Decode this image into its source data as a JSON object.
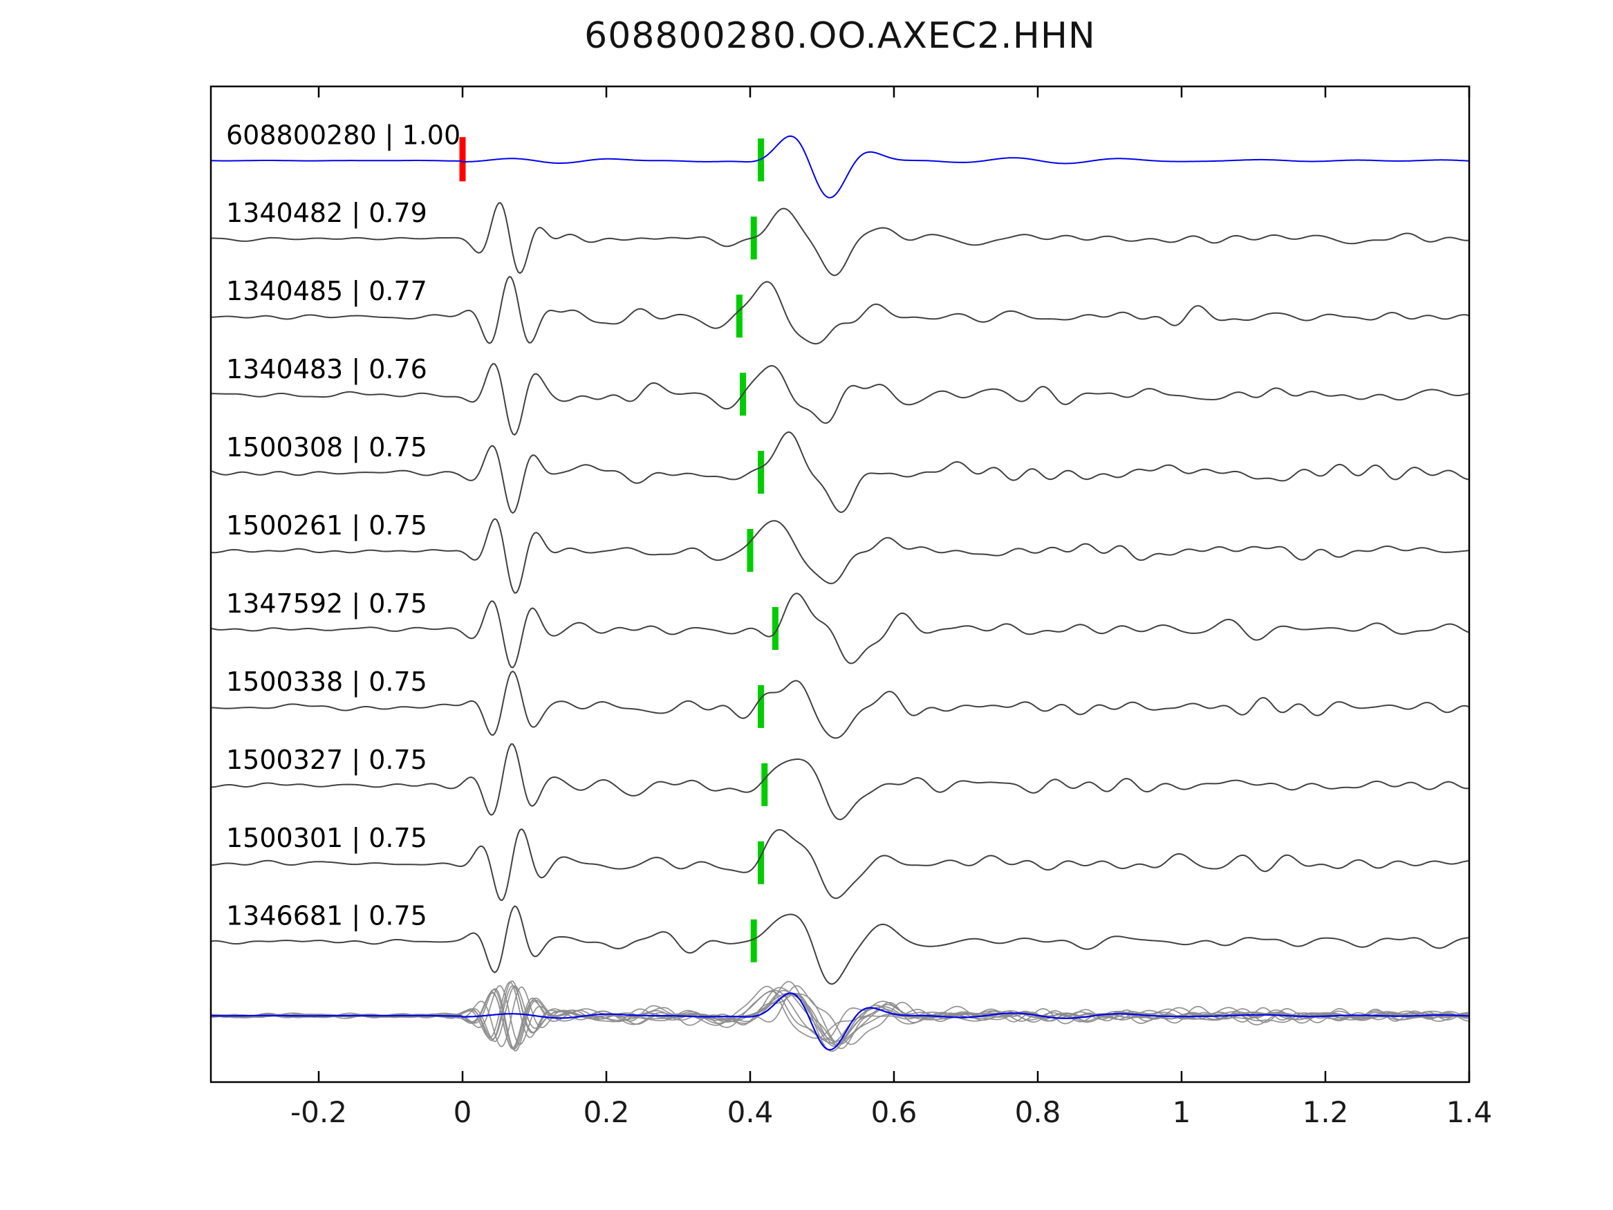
{
  "chart_data": {
    "type": "line",
    "title": "608800280.OO.AXEC2.HHN",
    "xlabel": "",
    "ylabel": "",
    "xlim": [
      -0.35,
      1.4
    ],
    "x_ticks": [
      -0.2,
      0,
      0.2,
      0.4,
      0.6,
      0.8,
      1,
      1.2,
      1.4
    ],
    "x_tick_labels": [
      "-0.2",
      "0",
      "0.2",
      "0.4",
      "0.6",
      "0.8",
      "1",
      "1.2",
      "1.4"
    ],
    "grid": false,
    "legend": "none",
    "colors": {
      "template_trace": "#0000ee",
      "match_trace": "#404040",
      "overlay_trace": "#8c8c8c",
      "pick_marker": "#00cc00",
      "origin_marker": "#ff0000",
      "axis": "#000000",
      "text": "#1a1a1a"
    },
    "traces": [
      {
        "id": "608800280",
        "correlation": "1.00",
        "label": "608800280 | 1.00",
        "pick_time": 0.415,
        "origin_time": 0.0,
        "role": "template"
      },
      {
        "id": "1340482",
        "correlation": "0.79",
        "label": "1340482 | 0.79",
        "pick_time": 0.405,
        "role": "match"
      },
      {
        "id": "1340485",
        "correlation": "0.77",
        "label": "1340485 | 0.77",
        "pick_time": 0.385,
        "role": "match"
      },
      {
        "id": "1340483",
        "correlation": "0.76",
        "label": "1340483 | 0.76",
        "pick_time": 0.39,
        "role": "match"
      },
      {
        "id": "1500308",
        "correlation": "0.75",
        "label": "1500308 | 0.75",
        "pick_time": 0.415,
        "role": "match"
      },
      {
        "id": "1500261",
        "correlation": "0.75",
        "label": "1500261 | 0.75",
        "pick_time": 0.4,
        "role": "match"
      },
      {
        "id": "1347592",
        "correlation": "0.75",
        "label": "1347592 | 0.75",
        "pick_time": 0.435,
        "role": "match"
      },
      {
        "id": "1500338",
        "correlation": "0.75",
        "label": "1500338 | 0.75",
        "pick_time": 0.415,
        "role": "match"
      },
      {
        "id": "1500327",
        "correlation": "0.75",
        "label": "1500327 | 0.75",
        "pick_time": 0.42,
        "role": "match"
      },
      {
        "id": "1500301",
        "correlation": "0.75",
        "label": "1500301 | 0.75",
        "pick_time": 0.415,
        "role": "match"
      },
      {
        "id": "1346681",
        "correlation": "0.75",
        "label": "1346681 | 0.75",
        "pick_time": 0.405,
        "role": "match"
      }
    ],
    "overlay_row": {
      "description": "all detection traces overlaid in gray with blue template on top",
      "includes_template": true
    }
  }
}
